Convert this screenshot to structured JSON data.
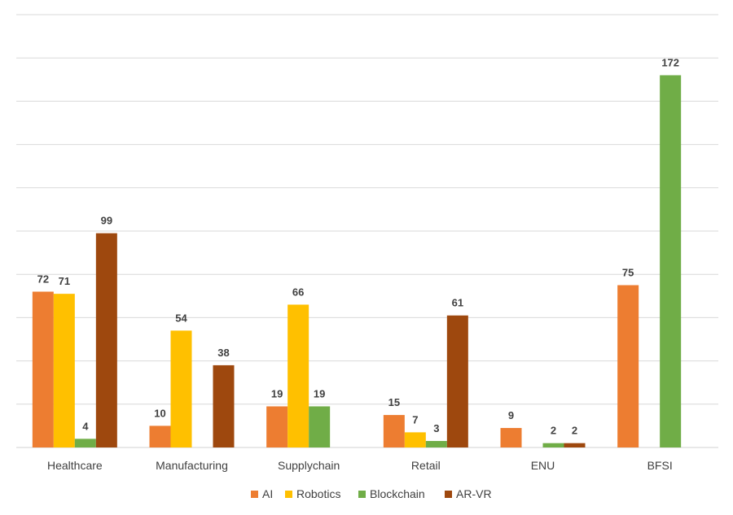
{
  "chart_data": {
    "type": "bar",
    "title": "",
    "xlabel": "",
    "ylabel": "",
    "ylim": [
      0,
      200
    ],
    "ytick_step": 20,
    "grid": true,
    "legend_position": "bottom",
    "categories": [
      "Healthcare",
      "Manufacturing",
      "Supplychain",
      "Retail",
      "ENU",
      "BFSI"
    ],
    "series": [
      {
        "name": "AI",
        "color": "#ED7D31",
        "values": [
          72,
          10,
          19,
          15,
          9,
          75
        ]
      },
      {
        "name": "Robotics",
        "color": "#FFC000",
        "values": [
          71,
          54,
          66,
          7,
          null,
          null
        ]
      },
      {
        "name": "Blockchain",
        "color": "#70AD47",
        "values": [
          4,
          null,
          19,
          3,
          2,
          172
        ]
      },
      {
        "name": "AR-VR",
        "color": "#9E480E",
        "values": [
          99,
          38,
          null,
          61,
          2,
          null
        ]
      }
    ]
  }
}
